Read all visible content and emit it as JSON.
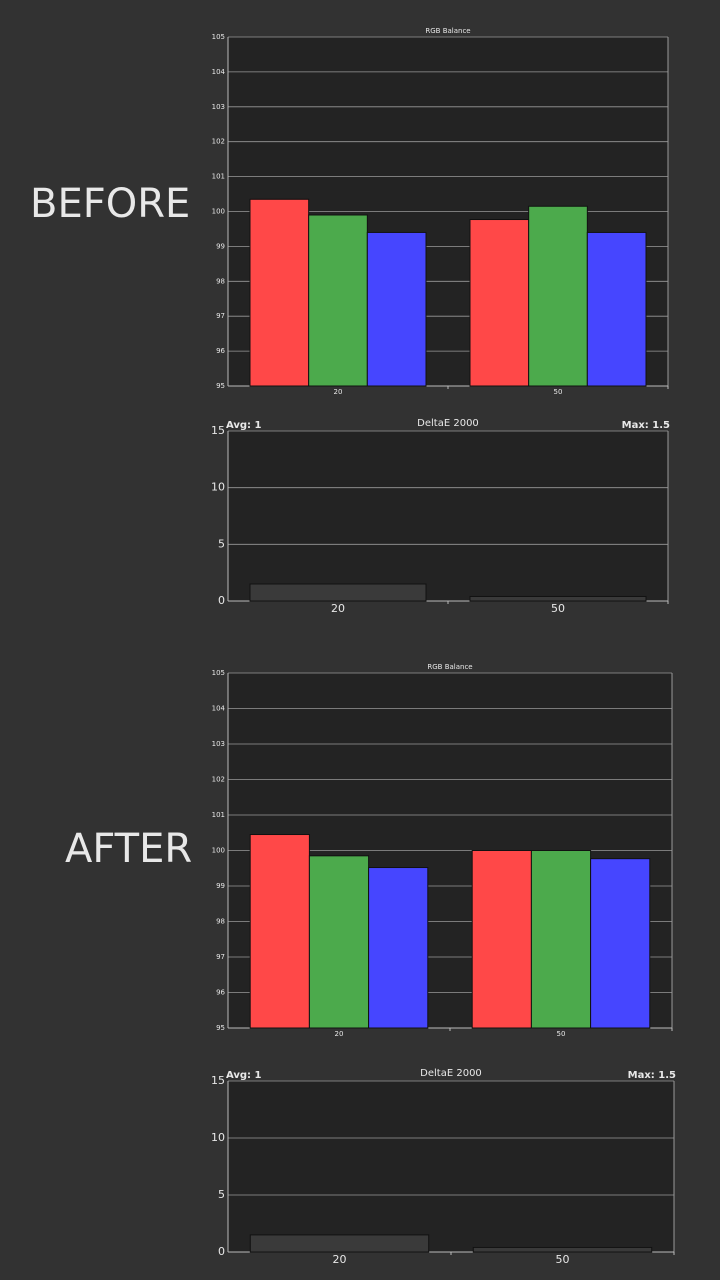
{
  "labels": [
    "BEFORE",
    "AFTER"
  ],
  "chart_data": [
    {
      "type": "bar",
      "title": "RGB Balance",
      "categories": [
        "20",
        "50"
      ],
      "series": [
        {
          "color": "#ff4848",
          "values": [
            100.35,
            99.77
          ]
        },
        {
          "color": "#4caa4c",
          "values": [
            99.9,
            100.15
          ]
        },
        {
          "color": "#4646ff",
          "values": [
            99.4,
            99.4
          ]
        }
      ],
      "ylim": [
        95,
        105
      ],
      "yticks": [
        95,
        96,
        97,
        98,
        99,
        100,
        101,
        102,
        103,
        104,
        105
      ],
      "grid": true
    },
    {
      "type": "bar",
      "title": "DeltaE 2000",
      "annotations": [
        "Avg: 1",
        "Max: 1.5"
      ],
      "categories": [
        "20",
        "50"
      ],
      "values": [
        1.5,
        0.4
      ],
      "color": "#3a3a3a",
      "ylim": [
        0,
        15
      ],
      "yticks": [
        0,
        5,
        10,
        15
      ],
      "grid": true
    },
    {
      "type": "bar",
      "title": "RGB Balance",
      "categories": [
        "20",
        "50"
      ],
      "series": [
        {
          "color": "#ff4848",
          "values": [
            100.45,
            100.0
          ]
        },
        {
          "color": "#4caa4c",
          "values": [
            99.85,
            100.0
          ]
        },
        {
          "color": "#4646ff",
          "values": [
            99.52,
            99.77
          ]
        }
      ],
      "ylim": [
        95,
        105
      ],
      "yticks": [
        95,
        96,
        97,
        98,
        99,
        100,
        101,
        102,
        103,
        104,
        105
      ],
      "grid": true
    },
    {
      "type": "bar",
      "title": "DeltaE 2000",
      "annotations": [
        "Avg: 1",
        "Max: 1.5"
      ],
      "categories": [
        "20",
        "50"
      ],
      "values": [
        1.5,
        0.4
      ],
      "color": "#3a3a3a",
      "ylim": [
        0,
        15
      ],
      "yticks": [
        0,
        5,
        10,
        15
      ],
      "grid": true
    }
  ]
}
